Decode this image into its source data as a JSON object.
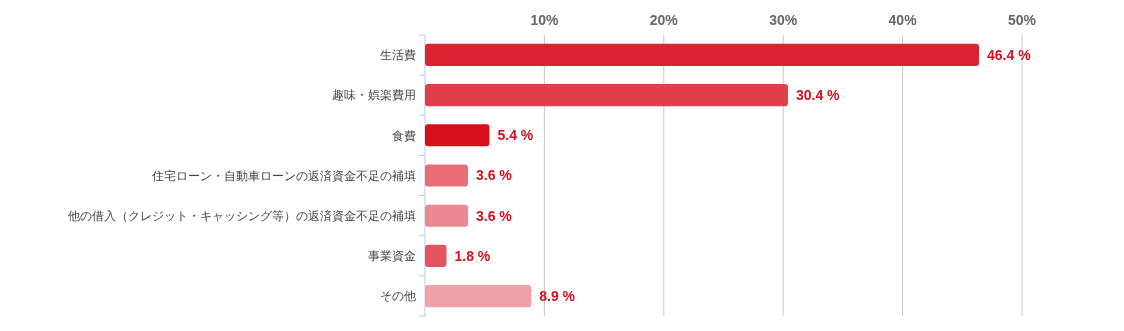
{
  "chart_data": {
    "type": "bar",
    "orientation": "horizontal",
    "categories": [
      "生活費",
      "趣味・娯楽費用",
      "食費",
      "住宅ローン・自動車ローンの返済資金不足の補填",
      "他の借入（クレジット・キャッシング等）の返済資金不足の補填",
      "事業資金",
      "その他"
    ],
    "values": [
      46.4,
      30.4,
      5.4,
      3.6,
      3.6,
      1.8,
      8.9
    ],
    "colors": [
      "#dc2430",
      "#e03e48",
      "#d80e1e",
      "#e86f78",
      "#ec8890",
      "#e25560",
      "#f0a0a6"
    ],
    "value_labels": [
      "46.4 %",
      "30.4 %",
      "5.4 %",
      "3.6 %",
      "3.6 %",
      "1.8 %",
      "8.9 %"
    ],
    "xlim": [
      0,
      50
    ],
    "xticks": [
      {
        "value": 10,
        "label": "10%"
      },
      {
        "value": 20,
        "label": "20%"
      },
      {
        "value": 30,
        "label": "30%"
      },
      {
        "value": 40,
        "label": "40%"
      },
      {
        "value": 50,
        "label": "50%"
      }
    ],
    "grid": "x"
  }
}
